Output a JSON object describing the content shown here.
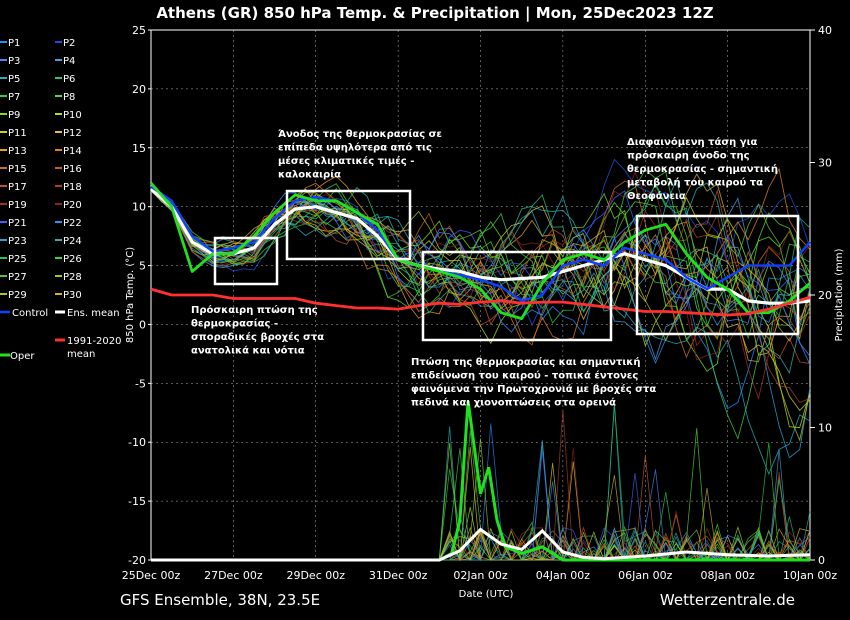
{
  "chart_data": {
    "type": "line",
    "title": "Athens  (GR)  850 hPa Temp. & Precipitation | Mon, 25Dec2023 12Z",
    "xlabel": "Date (UTC)",
    "ylabel": "850 hPa Temp. (°C)",
    "y2label": "Precipitation (mm)",
    "x_ticks": [
      "25Dec 00z",
      "27Dec 00z",
      "29Dec 00z",
      "31Dec 00z",
      "02Jan 00z",
      "04Jan 00z",
      "06Jan 00z",
      "08Jan 00z",
      "10Jan 00z"
    ],
    "x_range_days": [
      0,
      16
    ],
    "ylim": [
      -20,
      25
    ],
    "y_ticks": [
      -20,
      -15,
      -10,
      -5,
      0,
      5,
      10,
      15,
      20,
      25
    ],
    "y2lim": [
      0,
      40
    ],
    "y2_ticks": [
      0,
      10,
      20,
      30,
      40
    ],
    "footer_left": "GFS Ensemble, 38N, 23.5E",
    "footer_right": "Wetterzentrale.de",
    "legend": [
      {
        "name": "P1",
        "color": "#1e90ff"
      },
      {
        "name": "P2",
        "color": "#1e50e0"
      },
      {
        "name": "P3",
        "color": "#5080ff"
      },
      {
        "name": "P4",
        "color": "#40a0e0"
      },
      {
        "name": "P5",
        "color": "#20b0c0"
      },
      {
        "name": "P6",
        "color": "#30c080"
      },
      {
        "name": "P7",
        "color": "#30d040"
      },
      {
        "name": "P8",
        "color": "#50e030"
      },
      {
        "name": "P9",
        "color": "#80e020"
      },
      {
        "name": "P10",
        "color": "#b0e020"
      },
      {
        "name": "P11",
        "color": "#d0d020"
      },
      {
        "name": "P12",
        "color": "#e0c040"
      },
      {
        "name": "P13",
        "color": "#e0a030"
      },
      {
        "name": "P14",
        "color": "#e08020"
      },
      {
        "name": "P15",
        "color": "#d07020"
      },
      {
        "name": "P16",
        "color": "#c06020"
      },
      {
        "name": "P17",
        "color": "#c05030"
      },
      {
        "name": "P18",
        "color": "#b04020"
      },
      {
        "name": "P19",
        "color": "#a03020"
      },
      {
        "name": "P20",
        "color": "#902020"
      },
      {
        "name": "P21",
        "color": "#4060ff"
      },
      {
        "name": "P22",
        "color": "#3090ff"
      },
      {
        "name": "P23",
        "color": "#30a0d0"
      },
      {
        "name": "P24",
        "color": "#30b0b0"
      },
      {
        "name": "P25",
        "color": "#20c070"
      },
      {
        "name": "P26",
        "color": "#40d050"
      },
      {
        "name": "P27",
        "color": "#60c030"
      },
      {
        "name": "P28",
        "color": "#90d020"
      },
      {
        "name": "P29",
        "color": "#b0c030"
      },
      {
        "name": "P30",
        "color": "#d0b030"
      },
      {
        "name": "Control",
        "color": "#1040ff"
      },
      {
        "name": "Ens. mean",
        "color": "#ffffff"
      },
      {
        "name": "Oper",
        "color": "#20e020"
      },
      {
        "name": "1991-2020 mean",
        "color": "#ff3030"
      }
    ],
    "series": [
      {
        "name": "Ens. mean",
        "color": "#ffffff",
        "x": [
          0,
          0.5,
          1,
          1.5,
          2,
          2.5,
          3,
          3.5,
          4,
          4.5,
          5,
          5.5,
          6,
          6.5,
          7,
          7.5,
          8,
          8.5,
          9,
          9.5,
          10,
          10.5,
          11,
          11.5,
          12,
          12.5,
          13,
          13.5,
          14,
          14.5,
          15,
          15.5,
          16
        ],
        "y": [
          11.5,
          10,
          7,
          6,
          6,
          6.5,
          8.5,
          9.8,
          10,
          9.5,
          9,
          7.5,
          5.5,
          5,
          4.7,
          4.5,
          4,
          3.8,
          3.9,
          4,
          4.5,
          5,
          5.5,
          6,
          5.5,
          5,
          4,
          3,
          3,
          2,
          1.8,
          1.8,
          2
        ]
      },
      {
        "name": "Control",
        "color": "#1040ff",
        "x": [
          0,
          0.5,
          1,
          1.5,
          2,
          2.5,
          3,
          3.5,
          4,
          4.5,
          5,
          5.5,
          6,
          6.5,
          7,
          7.5,
          8,
          8.5,
          9,
          9.5,
          10,
          10.5,
          11,
          11.5,
          12,
          12.5,
          13,
          13.5,
          14,
          14.5,
          15,
          15.5,
          16
        ],
        "y": [
          11.7,
          10.5,
          7.5,
          6.2,
          6.5,
          7,
          9,
          10.5,
          10.8,
          10.5,
          9.5,
          8,
          5.5,
          5,
          4.5,
          4.2,
          3.8,
          3.2,
          2,
          2.5,
          5,
          5.5,
          5,
          6.5,
          6,
          5.5,
          4,
          3,
          4,
          5,
          5,
          5,
          7
        ]
      },
      {
        "name": "Oper",
        "color": "#20e020",
        "x": [
          0,
          0.5,
          1,
          1.5,
          2,
          2.5,
          3,
          3.5,
          4,
          4.5,
          5,
          5.5,
          6,
          6.5,
          7,
          7.5,
          8,
          8.5,
          9,
          9.5,
          10,
          10.5,
          11,
          11.5,
          12,
          12.5,
          13,
          13.5,
          14,
          14.5,
          15,
          15.5,
          16
        ],
        "y": [
          12,
          10,
          4.5,
          6,
          6,
          7.5,
          9.5,
          11,
          10.5,
          10.5,
          9.5,
          8.5,
          5.5,
          5,
          4.5,
          4,
          3,
          1,
          0.5,
          3.5,
          5.5,
          6,
          5.5,
          7,
          8,
          8.5,
          6,
          4,
          3,
          1,
          1,
          2,
          3.5
        ]
      },
      {
        "name": "1991-2020 mean",
        "color": "#ff3030",
        "x": [
          0,
          0.5,
          1,
          1.5,
          2,
          2.5,
          3,
          3.5,
          4,
          4.5,
          5,
          5.5,
          6,
          6.5,
          7,
          7.5,
          8,
          8.5,
          9,
          9.5,
          10,
          10.5,
          11,
          11.5,
          12,
          12.5,
          13,
          13.5,
          14,
          14.5,
          15,
          15.5,
          16
        ],
        "y": [
          3,
          2.5,
          2.5,
          2.5,
          2.2,
          2.2,
          2.2,
          2.2,
          1.8,
          1.6,
          1.4,
          1.4,
          1.3,
          1.6,
          1.8,
          1.7,
          1.9,
          2,
          1.8,
          1.9,
          1.9,
          1.7,
          1.5,
          1.3,
          1.1,
          1.1,
          1,
          0.9,
          0.8,
          0.9,
          1.3,
          1.8,
          2.3
        ]
      }
    ],
    "precip_series": [
      {
        "name": "Oper",
        "color": "#20e020",
        "x": [
          0,
          7,
          7.3,
          7.5,
          7.7,
          8,
          8.2,
          8.4,
          8.6,
          9,
          9.5,
          10,
          10.5,
          11,
          16
        ],
        "y": [
          0,
          0,
          0.5,
          3,
          12,
          5,
          7,
          3,
          1,
          0.5,
          1,
          0,
          0,
          0,
          0
        ]
      },
      {
        "name": "Ens. mean",
        "color": "#ffffff",
        "x": [
          0,
          7,
          7.5,
          8,
          8.5,
          9,
          9.5,
          10,
          10.5,
          11,
          12,
          13,
          14,
          15,
          16
        ],
        "y": [
          0,
          0,
          0.7,
          2.3,
          1.2,
          0.8,
          2.2,
          0.6,
          0.2,
          0.1,
          0.3,
          0.6,
          0.4,
          0.3,
          0.4
        ]
      }
    ],
    "annotations": [
      {
        "text": "Άνοδος της θερμοκρασίας σε\nεπίπεδα υψηλότερα από τις\nμέσες κλιματικές τιμές -\nκαλοκαιρία"
      },
      {
        "text": "Πρόσκαιρη πτώση της\nθερμοκρασίας -\nσποραδικές βροχές στα\nανατολικά και νότια"
      },
      {
        "text": "Πτώση της θερμοκρασίας και σημαντική\nεπιδείνωση του καιρού - τοπικά έντονες\nφαινόμενα την Πρωτοχρονιά με βροχές στα\nπεδινά και χιονοπτώσεις στα ορεινά"
      },
      {
        "text": "Διαφαινόμενη τάση για\nπρόσκαιρη άνοδο της\nθερμοκρασίας - σημαντική\nμεταβολή του καιρού τα\nΘεοφάνεια"
      }
    ],
    "grid": true,
    "legend_position": "left"
  }
}
